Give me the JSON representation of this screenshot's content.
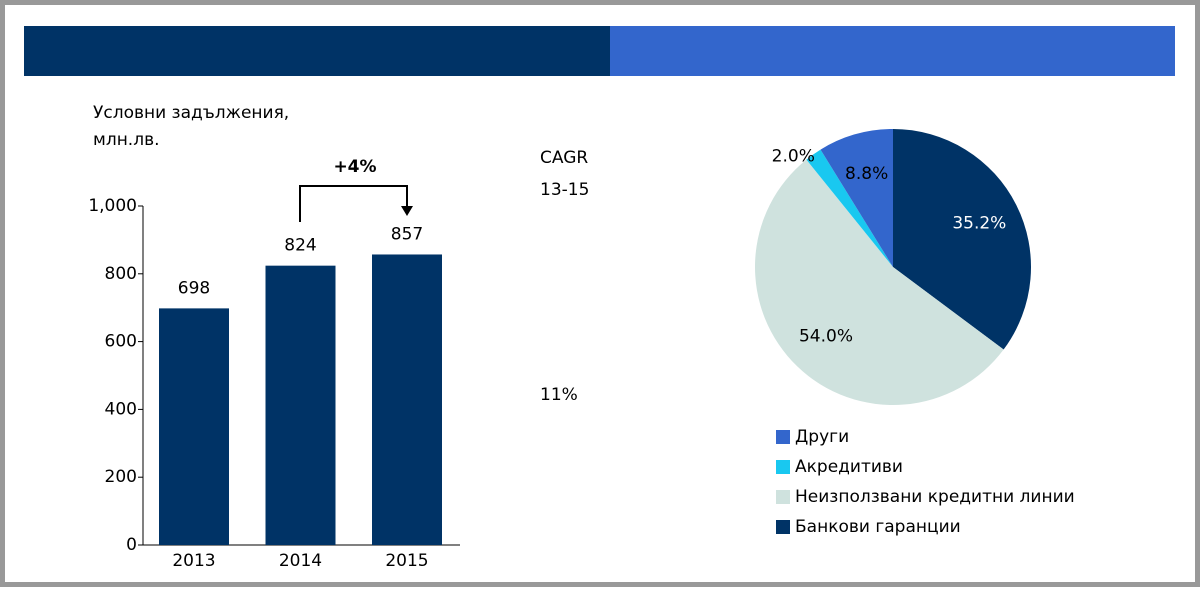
{
  "chart_data": [
    {
      "type": "bar",
      "title": "Условни задължения,",
      "subtitle": "млн.лв.",
      "categories": [
        "2013",
        "2014",
        "2015"
      ],
      "values": [
        698,
        824,
        857
      ],
      "color": "#003366",
      "ylim": [
        0,
        1000
      ],
      "yticks": [
        0,
        200,
        400,
        600,
        800,
        {
          "value": 1000,
          "label": "1,000"
        }
      ],
      "annotations": [
        "+4%",
        "CAGR",
        "13-15",
        "11%"
      ]
    },
    {
      "type": "pie",
      "series": [
        {
          "name": "Други",
          "color": "#3366cc",
          "value": 8.8,
          "value_label": "8.8%"
        },
        {
          "name": "Акредитиви",
          "color": "#19c8f0",
          "value": 2.0,
          "value_label": "2.0%"
        },
        {
          "name": "Неизползвани кредитни линии",
          "color": "#cfe2de",
          "value": 54.0,
          "value_label": "54.0%"
        },
        {
          "name": "Банкови гаранции",
          "color": "#003366",
          "value": 35.2,
          "value_label": "35.2%"
        }
      ]
    }
  ]
}
